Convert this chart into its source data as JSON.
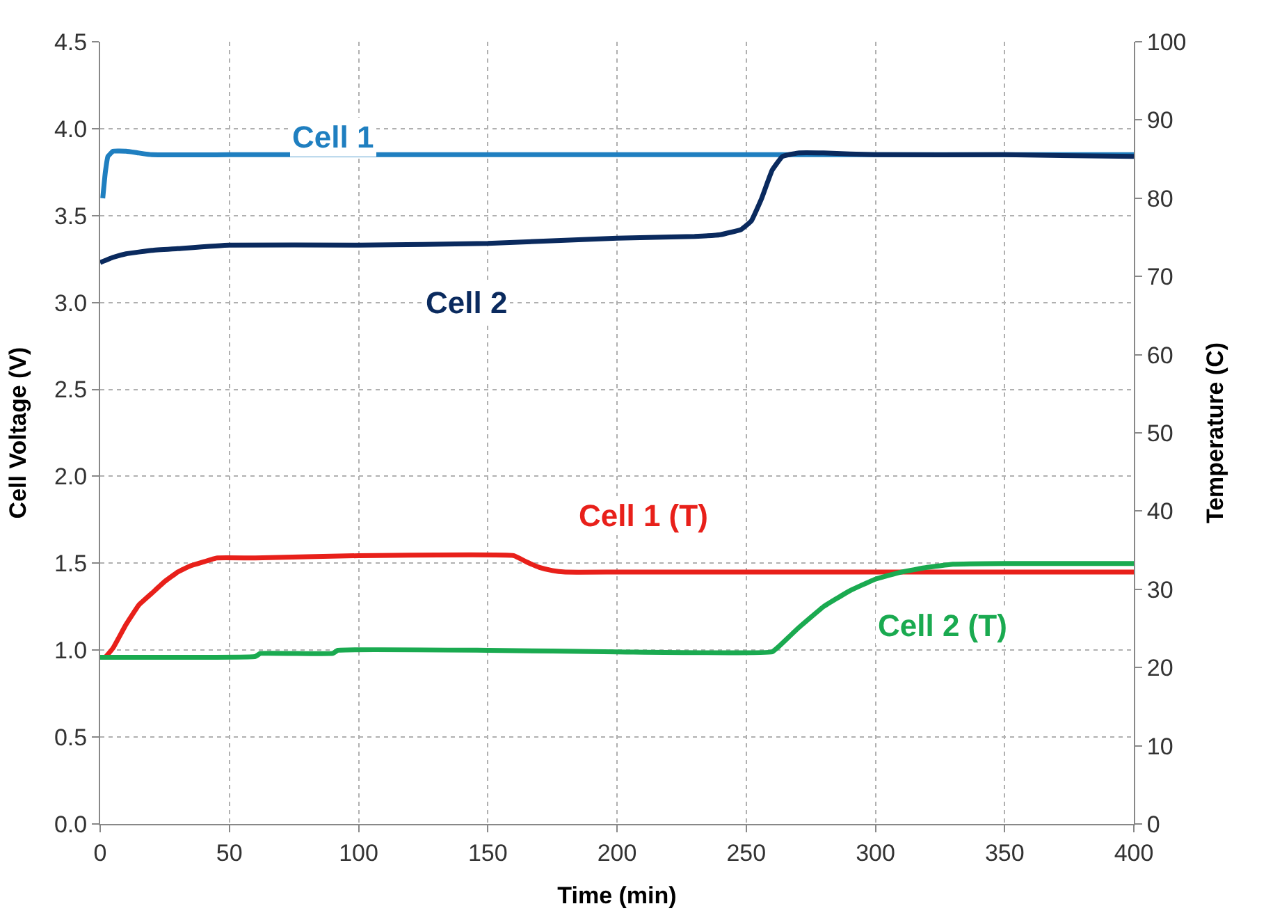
{
  "chart_data": {
    "type": "line",
    "xlabel": "Time (min)",
    "ylabel": "Cell Voltage (V)",
    "y2label": "Temperature (C)",
    "xlim": [
      0,
      400
    ],
    "xticks": [
      0,
      50,
      100,
      150,
      200,
      250,
      300,
      350,
      400
    ],
    "ylim": [
      0,
      4.5
    ],
    "yticks": [
      {
        "value": 0,
        "label": "0.0"
      },
      {
        "value": 0.5,
        "label": "0.5"
      },
      {
        "value": 1,
        "label": "1.0"
      },
      {
        "value": 1.5,
        "label": "1.5"
      },
      {
        "value": 2,
        "label": "2.0"
      },
      {
        "value": 2.5,
        "label": "2.5"
      },
      {
        "value": 3,
        "label": "3.0"
      },
      {
        "value": 3.5,
        "label": "3.5"
      },
      {
        "value": 4,
        "label": "4.0"
      },
      {
        "value": 4.5,
        "label": "4.5"
      }
    ],
    "y2lim": [
      0,
      100
    ],
    "y2ticks": [
      0,
      10,
      20,
      30,
      40,
      50,
      60,
      70,
      80,
      90,
      100
    ],
    "grid": true,
    "legend": false,
    "marker": "none",
    "line_style": "solid",
    "series": [
      {
        "name": "Cell 1",
        "color": "#1f7fc0",
        "x": [
          1,
          2,
          3,
          5,
          10,
          15,
          20,
          50,
          100,
          200,
          300,
          400
        ],
        "values": [
          3.6,
          3.75,
          3.84,
          3.87,
          3.87,
          3.86,
          3.85,
          3.85,
          3.85,
          3.85,
          3.85,
          3.85
        ]
      },
      {
        "name": "Cell 2",
        "color": "#0a2a5e",
        "x": [
          0,
          5,
          10,
          20,
          30,
          50,
          100,
          150,
          200,
          230,
          240,
          248,
          252,
          256,
          260,
          264,
          270,
          280,
          300,
          350,
          400
        ],
        "values": [
          3.23,
          3.26,
          3.28,
          3.3,
          3.31,
          3.33,
          3.33,
          3.34,
          3.37,
          3.38,
          3.39,
          3.42,
          3.47,
          3.6,
          3.76,
          3.84,
          3.86,
          3.86,
          3.85,
          3.85,
          3.84
        ]
      },
      {
        "name": "Cell 1 (T)",
        "color": "#e8201a",
        "axis": "y2",
        "x": [
          2,
          5,
          10,
          15,
          20,
          25,
          30,
          35,
          40,
          45,
          60,
          100,
          160,
          165,
          170,
          175,
          180,
          200,
          300,
          400
        ],
        "values": [
          21.3,
          22.5,
          25.5,
          28,
          29.5,
          31,
          32.2,
          33,
          33.5,
          34,
          34,
          34.3,
          34.3,
          33.5,
          32.8,
          32.4,
          32.2,
          32.2,
          32.2,
          32.2
        ]
      },
      {
        "name": "Cell 2 (T)",
        "color": "#1aaa50",
        "axis": "y2",
        "x": [
          0,
          30,
          60,
          62,
          90,
          92,
          150,
          200,
          260,
          263,
          270,
          280,
          290,
          300,
          310,
          320,
          330,
          350,
          400
        ],
        "values": [
          21.3,
          21.3,
          21.4,
          21.8,
          21.8,
          22.2,
          22.2,
          22,
          22,
          22.8,
          25,
          27.8,
          29.8,
          31.3,
          32.2,
          32.8,
          33.2,
          33.3,
          33.3
        ]
      }
    ]
  }
}
